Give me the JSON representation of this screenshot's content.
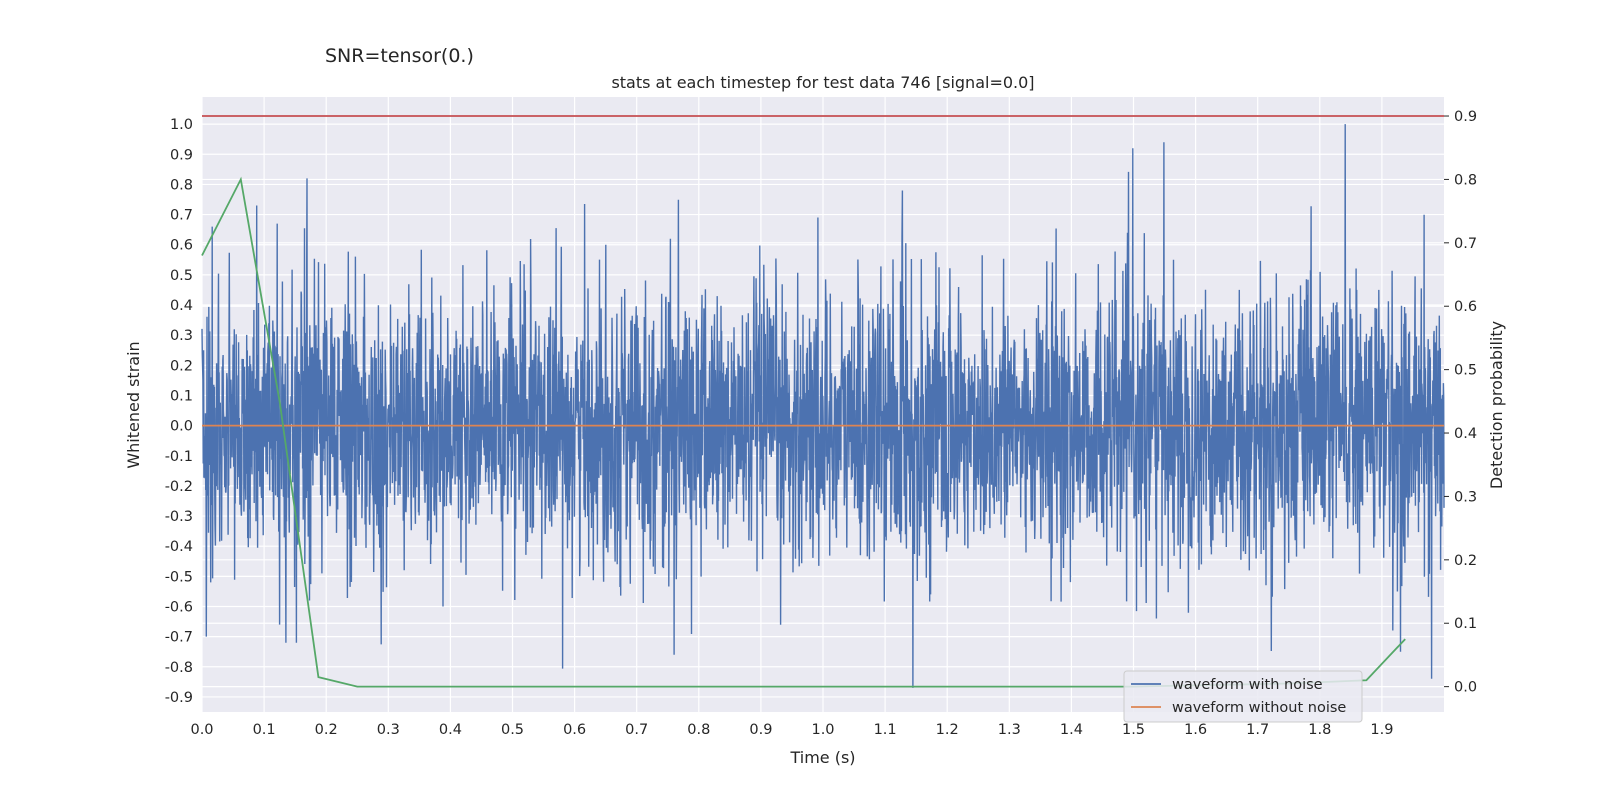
{
  "suptitle": "SNR=tensor(0.)",
  "chart_data": {
    "type": "line",
    "title": "stats at each timestep for test data 746 [signal=0.0]",
    "xlabel": "Time (s)",
    "ylabel": "Whitened strain",
    "y2label": "Detection probability",
    "xlim": [
      0.0,
      2.0
    ],
    "ylim": [
      -0.95,
      1.09
    ],
    "y2lim": [
      -0.04,
      0.93
    ],
    "x_ticks": [
      "0.0",
      "0.1",
      "0.2",
      "0.3",
      "0.4",
      "0.5",
      "0.6",
      "0.7",
      "0.8",
      "0.9",
      "1.0",
      "1.1",
      "1.2",
      "1.3",
      "1.4",
      "1.5",
      "1.6",
      "1.7",
      "1.8",
      "1.9"
    ],
    "y_ticks": [
      "1.0",
      "0.9",
      "0.8",
      "0.7",
      "0.6",
      "0.5",
      "0.4",
      "0.3",
      "0.2",
      "0.1",
      "0.0",
      "-0.1",
      "-0.2",
      "-0.3",
      "-0.4",
      "-0.5",
      "-0.6",
      "-0.7",
      "-0.8",
      "-0.9"
    ],
    "y2_ticks": [
      "0.9",
      "0.8",
      "0.7",
      "0.6",
      "0.5",
      "0.4",
      "0.3",
      "0.2",
      "0.1",
      "0.0"
    ],
    "grid": true,
    "legend_position": "lower-right",
    "threshold": {
      "axis": "right",
      "value": 0.9,
      "color": "#c44e52"
    },
    "series": [
      {
        "name": "waveform with noise",
        "axis": "left",
        "color": "#4c72b0",
        "kind": "noise",
        "samples": 4000,
        "amplitude_std": 0.22,
        "spikes": [
          {
            "x": 0.0165,
            "y": 0.66
          },
          {
            "x": 0.007,
            "y": -0.7
          },
          {
            "x": 0.014,
            "y": -0.52
          },
          {
            "x": 0.088,
            "y": 0.73
          },
          {
            "x": 0.12,
            "y": 0.26
          },
          {
            "x": 0.121,
            "y": 0.67
          },
          {
            "x": 0.125,
            "y": -0.66
          },
          {
            "x": 0.135,
            "y": -0.72
          },
          {
            "x": 0.152,
            "y": -0.72
          },
          {
            "x": 0.169,
            "y": 0.82
          },
          {
            "x": 0.173,
            "y": -0.58
          },
          {
            "x": 0.388,
            "y": -0.6
          },
          {
            "x": 0.76,
            "y": -0.76
          },
          {
            "x": 1.145,
            "y": -0.87
          },
          {
            "x": 1.128,
            "y": 0.78
          },
          {
            "x": 1.499,
            "y": 0.92
          },
          {
            "x": 1.549,
            "y": 0.94
          },
          {
            "x": 1.537,
            "y": -0.64
          },
          {
            "x": 1.841,
            "y": 1.0
          },
          {
            "x": 1.93,
            "y": -0.75
          },
          {
            "x": 1.98,
            "y": -0.84
          },
          {
            "x": 1.895,
            "y": 0.45
          },
          {
            "x": 0.754,
            "y": 0.62
          },
          {
            "x": 0.65,
            "y": 0.6
          }
        ]
      },
      {
        "name": "waveform without noise",
        "axis": "left",
        "color": "#dd8452",
        "x": [
          0.0,
          2.0
        ],
        "y": [
          0.0,
          0.0
        ]
      },
      {
        "axis": "right",
        "color": "#55a868",
        "x": [
          0.0,
          0.0625,
          0.125,
          0.1875,
          0.25,
          0.5,
          1.0,
          1.5,
          1.75,
          1.875,
          1.9375
        ],
        "y": [
          0.68,
          0.8,
          0.45,
          0.015,
          0.0,
          0.0,
          0.0,
          0.0,
          0.005,
          0.01,
          0.075
        ]
      }
    ]
  }
}
